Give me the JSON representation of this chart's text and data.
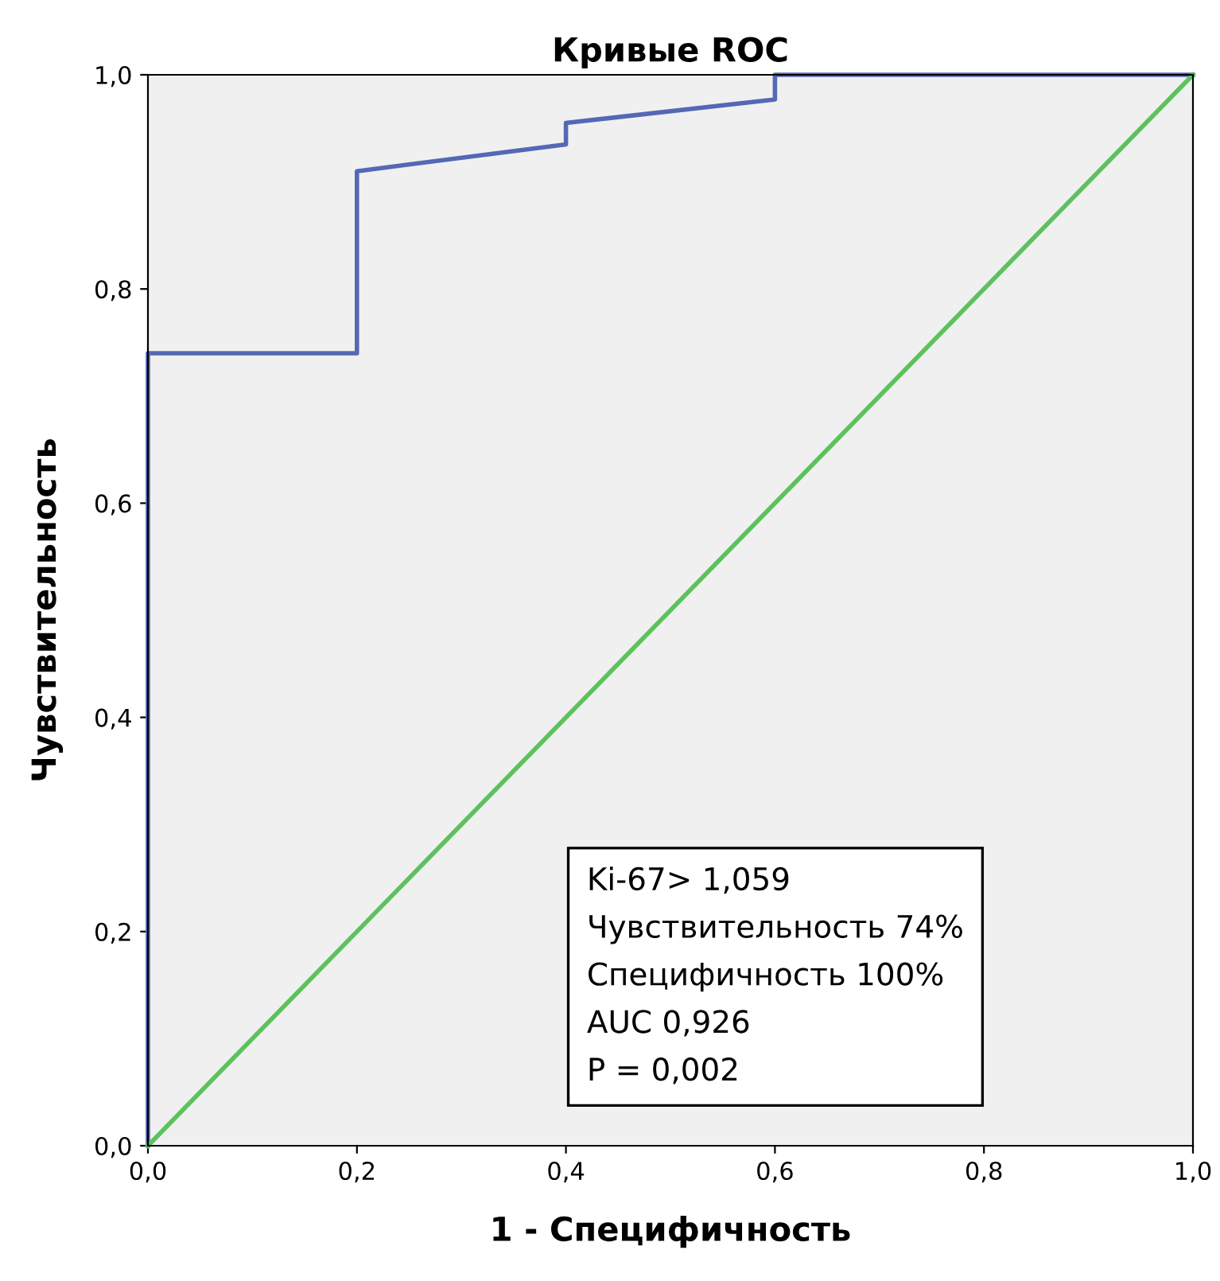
{
  "chart_data": {
    "type": "line",
    "title": "Кривые ROC",
    "xlabel": "1 - Специфичность",
    "ylabel": "Чувствительность",
    "series": [
      {
        "x": [
          0,
          0,
          0.2,
          0.2,
          0.4,
          0.4,
          0.6,
          0.6,
          1.0
        ],
        "values": [
          0,
          0.74,
          0.74,
          0.91,
          0.935,
          0.955,
          0.977,
          1.0,
          1.0
        ],
        "color": "#5568b4"
      },
      {
        "x": [
          0,
          1.0
        ],
        "values": [
          0,
          1.0
        ],
        "color": "#5cc25c"
      }
    ],
    "xlim": [
      0,
      1.0
    ],
    "ylim": [
      0,
      1.0
    ],
    "xticks": [
      {
        "value": 0,
        "label": "0,0"
      },
      {
        "value": 0.2,
        "label": "0,2"
      },
      {
        "value": 0.4,
        "label": "0,4"
      },
      {
        "value": 0.6,
        "label": "0,6"
      },
      {
        "value": 0.8,
        "label": "0,8"
      },
      {
        "value": 1.0,
        "label": "1,0"
      }
    ],
    "yticks": [
      {
        "value": 0,
        "label": "0,0"
      },
      {
        "value": 0.2,
        "label": "0,2"
      },
      {
        "value": 0.4,
        "label": "0,4"
      },
      {
        "value": 0.6,
        "label": "0,6"
      },
      {
        "value": 0.8,
        "label": "0,8"
      },
      {
        "value": 1.0,
        "label": "1,0"
      }
    ],
    "annotations": [
      "Ki-67> 1,059",
      "Чувствительность 74%",
      "Специфичность 100%",
      "AUC 0,926",
      "P = 0,002"
    ],
    "grid": false,
    "legend": false
  }
}
